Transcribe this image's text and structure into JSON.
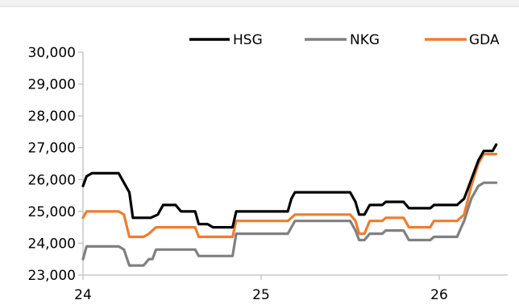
{
  "chart_data": {
    "type": "line",
    "x_ticks": [
      24,
      25,
      26
    ],
    "x_range": [
      24,
      26.4
    ],
    "ylim": [
      23000,
      30000
    ],
    "y_ticks": [
      23000,
      24000,
      25000,
      26000,
      27000,
      28000,
      29000,
      30000
    ],
    "y_tick_labels": [
      "23,000",
      "24,000",
      "25,000",
      "26,000",
      "27,000",
      "28,000",
      "29,000",
      "30,000"
    ],
    "legend_position": "top-right",
    "grid": false,
    "series": [
      {
        "name": "HSG",
        "color": "#000000",
        "points": [
          [
            24.0,
            25800
          ],
          [
            24.02,
            26100
          ],
          [
            24.05,
            26200
          ],
          [
            24.2,
            26200
          ],
          [
            24.23,
            25900
          ],
          [
            24.26,
            25600
          ],
          [
            24.28,
            24800
          ],
          [
            24.38,
            24800
          ],
          [
            24.42,
            24900
          ],
          [
            24.45,
            25200
          ],
          [
            24.52,
            25200
          ],
          [
            24.55,
            25000
          ],
          [
            24.63,
            25000
          ],
          [
            24.65,
            24600
          ],
          [
            24.7,
            24600
          ],
          [
            24.73,
            24500
          ],
          [
            24.84,
            24500
          ],
          [
            24.86,
            25000
          ],
          [
            25.0,
            25000
          ],
          [
            25.15,
            25000
          ],
          [
            25.17,
            25400
          ],
          [
            25.19,
            25600
          ],
          [
            25.5,
            25600
          ],
          [
            25.53,
            25300
          ],
          [
            25.55,
            24900
          ],
          [
            25.58,
            24900
          ],
          [
            25.61,
            25200
          ],
          [
            25.68,
            25200
          ],
          [
            25.7,
            25300
          ],
          [
            25.8,
            25300
          ],
          [
            25.83,
            25100
          ],
          [
            25.95,
            25100
          ],
          [
            25.97,
            25200
          ],
          [
            26.1,
            25200
          ],
          [
            26.14,
            25400
          ],
          [
            26.18,
            26000
          ],
          [
            26.22,
            26600
          ],
          [
            26.25,
            26900
          ],
          [
            26.3,
            26900
          ],
          [
            26.32,
            27100
          ]
        ]
      },
      {
        "name": "NKG",
        "color": "#808080",
        "points": [
          [
            24.0,
            23500
          ],
          [
            24.02,
            23900
          ],
          [
            24.2,
            23900
          ],
          [
            24.23,
            23800
          ],
          [
            24.26,
            23300
          ],
          [
            24.34,
            23300
          ],
          [
            24.37,
            23500
          ],
          [
            24.39,
            23500
          ],
          [
            24.41,
            23800
          ],
          [
            24.63,
            23800
          ],
          [
            24.65,
            23600
          ],
          [
            24.84,
            23600
          ],
          [
            24.86,
            24300
          ],
          [
            25.15,
            24300
          ],
          [
            25.17,
            24500
          ],
          [
            25.19,
            24700
          ],
          [
            25.5,
            24700
          ],
          [
            25.53,
            24400
          ],
          [
            25.55,
            24100
          ],
          [
            25.58,
            24100
          ],
          [
            25.61,
            24300
          ],
          [
            25.68,
            24300
          ],
          [
            25.7,
            24400
          ],
          [
            25.8,
            24400
          ],
          [
            25.83,
            24100
          ],
          [
            25.95,
            24100
          ],
          [
            25.97,
            24200
          ],
          [
            26.1,
            24200
          ],
          [
            26.14,
            24700
          ],
          [
            26.18,
            25400
          ],
          [
            26.22,
            25800
          ],
          [
            26.25,
            25900
          ],
          [
            26.32,
            25900
          ]
        ]
      },
      {
        "name": "GDA",
        "color": "#ED7D31",
        "points": [
          [
            24.0,
            24800
          ],
          [
            24.02,
            25000
          ],
          [
            24.2,
            25000
          ],
          [
            24.23,
            24900
          ],
          [
            24.26,
            24200
          ],
          [
            24.34,
            24200
          ],
          [
            24.37,
            24300
          ],
          [
            24.41,
            24500
          ],
          [
            24.63,
            24500
          ],
          [
            24.65,
            24200
          ],
          [
            24.84,
            24200
          ],
          [
            24.86,
            24700
          ],
          [
            25.15,
            24700
          ],
          [
            25.17,
            24800
          ],
          [
            25.19,
            24900
          ],
          [
            25.5,
            24900
          ],
          [
            25.53,
            24700
          ],
          [
            25.55,
            24300
          ],
          [
            25.58,
            24300
          ],
          [
            25.61,
            24700
          ],
          [
            25.68,
            24700
          ],
          [
            25.7,
            24800
          ],
          [
            25.8,
            24800
          ],
          [
            25.83,
            24500
          ],
          [
            25.95,
            24500
          ],
          [
            25.97,
            24700
          ],
          [
            26.1,
            24700
          ],
          [
            26.14,
            24900
          ],
          [
            26.18,
            25800
          ],
          [
            26.22,
            26500
          ],
          [
            26.25,
            26800
          ],
          [
            26.32,
            26800
          ]
        ]
      }
    ]
  }
}
